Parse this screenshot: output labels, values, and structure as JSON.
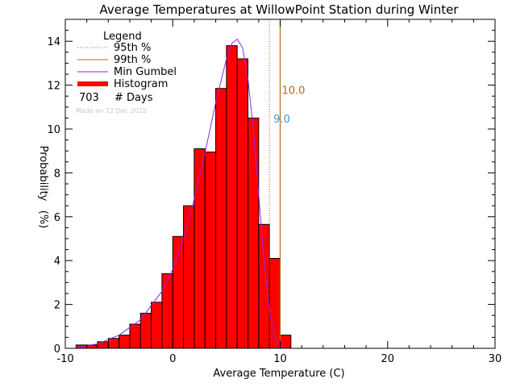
{
  "chart_data": {
    "type": "bar",
    "title": "Average Temperatures at WillowPoint Station during Winter",
    "xlabel": "Average Temperature (C)",
    "ylabel_top": "Probability",
    "ylabel_bottom": "(%)",
    "xlim": [
      -10,
      30
    ],
    "ylim": [
      0,
      15
    ],
    "xticks": [
      -10,
      0,
      10,
      20,
      30
    ],
    "yticks": [
      0,
      2,
      4,
      6,
      8,
      10,
      12,
      14
    ],
    "bin_width": 1,
    "bins_left": [
      -9,
      -8,
      -7,
      -6,
      -5,
      -4,
      -3,
      -2,
      -1,
      0,
      1,
      2,
      3,
      4,
      5,
      6,
      7,
      8,
      9,
      10,
      11
    ],
    "histogram_values": [
      0.15,
      0.15,
      0.3,
      0.45,
      0.6,
      1.1,
      1.6,
      2.1,
      3.4,
      5.1,
      6.5,
      9.1,
      8.95,
      11.85,
      13.8,
      13.2,
      10.5,
      5.65,
      4.1,
      0.6,
      0.0
    ],
    "gumbel_curve": {
      "x": [
        -9,
        -7,
        -5,
        -3,
        -1,
        0,
        1,
        2,
        3,
        4,
        5,
        5.5,
        6,
        6.5,
        7,
        7.5,
        8,
        8.5,
        9,
        9.5,
        10,
        10.5
      ],
      "y": [
        0.05,
        0.2,
        0.6,
        1.3,
        2.6,
        3.6,
        5.0,
        6.8,
        8.9,
        11.2,
        13.2,
        13.9,
        14.1,
        13.7,
        12.3,
        10.0,
        7.0,
        4.0,
        1.7,
        0.5,
        0.1,
        0.0
      ]
    },
    "p95": {
      "value": 9.0,
      "label": "9.0",
      "color": "#3a9bd5"
    },
    "p99": {
      "value": 10.0,
      "label": "10.0",
      "color": "#b5651d"
    },
    "colors": {
      "histogram_fill": "#ff0000",
      "gumbel": "#8a2be2",
      "p95_line": "#d0503a",
      "p99_line": "#b5651d"
    },
    "legend": {
      "title": "Legend",
      "position": "top-left",
      "items": [
        {
          "label": "95th %",
          "style": "dotted",
          "color": "#4a90c0"
        },
        {
          "label": "99th %",
          "style": "solid",
          "color": "#b5651d"
        },
        {
          "label": "Min Gumbel",
          "style": "solid",
          "color": "#8a2be2"
        },
        {
          "label": "Histogram",
          "style": "thick",
          "color": "#ff0000"
        }
      ],
      "days_count": "703",
      "days_label": "# Days",
      "made_on": "Made on 12 Dec 2025"
    }
  }
}
